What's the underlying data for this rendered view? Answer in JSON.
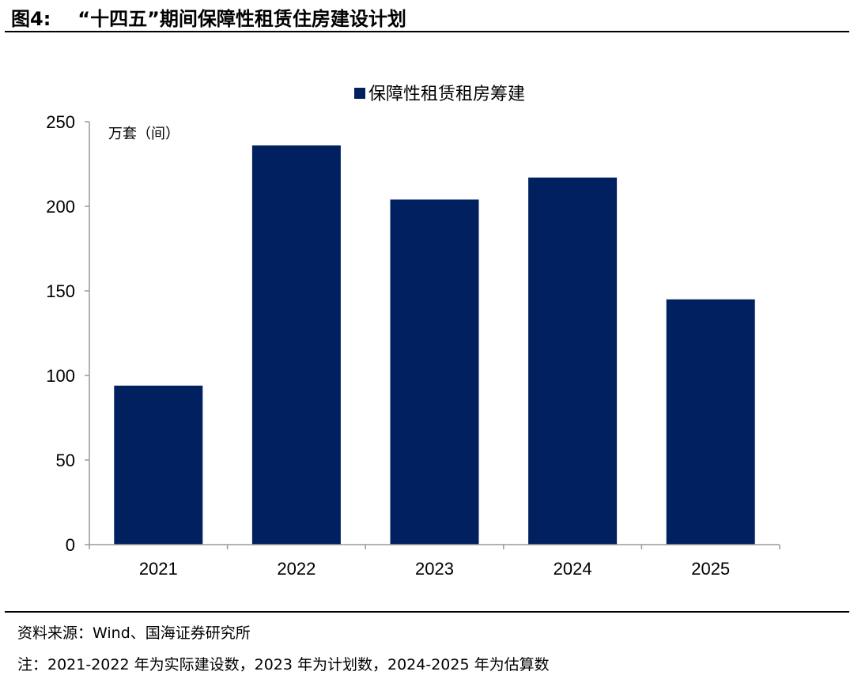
{
  "figure": {
    "label": "图4:",
    "title": "“十四五”期间保障性租赁住房建设计划"
  },
  "source": "资料来源：Wind、国海证券研究所",
  "note": "注：2021-2022 年为实际建设数，2023 年为计划数，2024-2025 年为估算数",
  "chart_data": {
    "type": "bar",
    "categories": [
      "2021",
      "2022",
      "2023",
      "2024",
      "2025"
    ],
    "series": [
      {
        "name": "保障性租赁租房筹建",
        "values": [
          94,
          236,
          204,
          217,
          145
        ],
        "color": "#002060"
      }
    ],
    "unit_label": "万套（间）",
    "ylim": [
      0,
      250
    ],
    "yticks": [
      "0",
      "50",
      "100",
      "150",
      "200",
      "250"
    ],
    "grid": false,
    "legend_position": "top-center"
  }
}
